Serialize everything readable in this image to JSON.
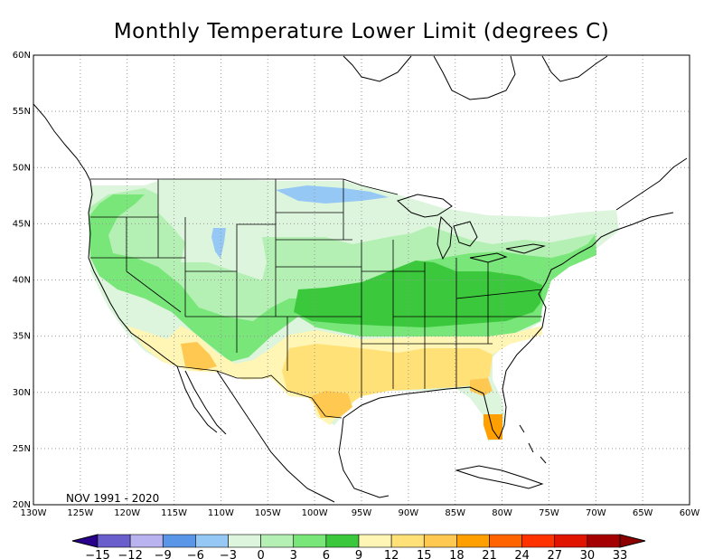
{
  "title": "Monthly Temperature Lower Limit (degrees C)",
  "period": "NOV 1991 - 2020",
  "lat_labels": [
    "60N",
    "55N",
    "50N",
    "45N",
    "40N",
    "35N",
    "30N",
    "25N",
    "20N"
  ],
  "lon_labels": [
    "130W",
    "125W",
    "120W",
    "115W",
    "110W",
    "105W",
    "100W",
    "95W",
    "90W",
    "85W",
    "80W",
    "75W",
    "70W",
    "65W",
    "60W"
  ],
  "colorbar": {
    "labels": [
      "-15",
      "-12",
      "-9",
      "-6",
      "-3",
      "0",
      "3",
      "6",
      "9",
      "12",
      "15",
      "18",
      "21",
      "24",
      "27",
      "30",
      "33"
    ],
    "colors": [
      "#6a5ecd",
      "#b9b4f0",
      "#5a96e8",
      "#96c8f5",
      "#dcf5dc",
      "#b4f0b4",
      "#78e678",
      "#3cc83c",
      "#fff5b4",
      "#ffe178",
      "#ffc850",
      "#ffa000",
      "#ff6400",
      "#ff3200",
      "#e11400",
      "#a50000"
    ],
    "low_color": "#28008c",
    "high_color": "#8c0000"
  }
}
